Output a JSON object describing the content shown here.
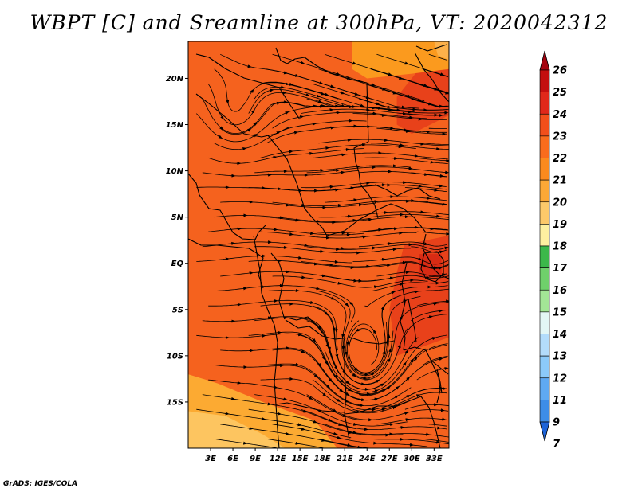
{
  "title": "WBPT [C] and Sreamline at 300hPa, VT: 2020042312",
  "credit": "GrADS: IGES/COLA",
  "map": {
    "lon_range": [
      0,
      35
    ],
    "lat_range": [
      -20,
      24
    ],
    "lat_ticks": [
      {
        "value": 20,
        "label": "20N"
      },
      {
        "value": 15,
        "label": "15N"
      },
      {
        "value": 10,
        "label": "10N"
      },
      {
        "value": 5,
        "label": "5N"
      },
      {
        "value": 0,
        "label": "EQ"
      },
      {
        "value": -5,
        "label": "5S"
      },
      {
        "value": -10,
        "label": "10S"
      },
      {
        "value": -15,
        "label": "15S"
      }
    ],
    "lon_ticks": [
      {
        "value": 3,
        "label": "3E"
      },
      {
        "value": 6,
        "label": "6E"
      },
      {
        "value": 9,
        "label": "9E"
      },
      {
        "value": 12,
        "label": "12E"
      },
      {
        "value": 15,
        "label": "15E"
      },
      {
        "value": 18,
        "label": "18E"
      },
      {
        "value": 21,
        "label": "21E"
      },
      {
        "value": 24,
        "label": "24E"
      },
      {
        "value": 27,
        "label": "27E"
      },
      {
        "value": 30,
        "label": "30E"
      },
      {
        "value": 33,
        "label": "33E"
      }
    ],
    "background_color": "#f5621e",
    "regions": [
      {
        "name": "northeast-warm",
        "color": "#e8411a",
        "points": [
          [
            28,
            18
          ],
          [
            31,
            21
          ],
          [
            35,
            21
          ],
          [
            35,
            16
          ],
          [
            30,
            14
          ],
          [
            28,
            15
          ]
        ]
      },
      {
        "name": "east-warm-coast",
        "color": "#e8411a",
        "points": [
          [
            29,
            2
          ],
          [
            35,
            3
          ],
          [
            35,
            -8
          ],
          [
            28,
            -10
          ],
          [
            27,
            -5
          ],
          [
            28,
            -1
          ]
        ]
      },
      {
        "name": "lake-victoria-warm",
        "color": "#d92b14",
        "points": [
          [
            31,
            1
          ],
          [
            34,
            1
          ],
          [
            34,
            -1.5
          ],
          [
            31,
            -1.5
          ]
        ]
      },
      {
        "name": "north-cool",
        "color": "#fb9a1e",
        "points": [
          [
            22,
            24
          ],
          [
            35,
            24
          ],
          [
            35,
            21
          ],
          [
            30,
            20.5
          ],
          [
            24,
            20
          ],
          [
            22,
            21
          ]
        ]
      },
      {
        "name": "northeast-pale",
        "color": "#fdb14a",
        "points": [
          [
            33,
            24
          ],
          [
            35,
            24
          ],
          [
            35,
            22
          ],
          [
            33.5,
            22.5
          ]
        ]
      },
      {
        "name": "southwest-cool",
        "color": "#fcaa32",
        "points": [
          [
            0,
            -12
          ],
          [
            4,
            -13
          ],
          [
            10,
            -15
          ],
          [
            17,
            -17
          ],
          [
            20,
            -20
          ],
          [
            0,
            -20
          ]
        ]
      },
      {
        "name": "southwest-pale",
        "color": "#fdc560",
        "points": [
          [
            0,
            -16
          ],
          [
            5,
            -16.5
          ],
          [
            10,
            -18.5
          ],
          [
            13,
            -20
          ],
          [
            0,
            -20
          ]
        ]
      }
    ],
    "vortex_centers": [
      {
        "name": "south-cyclone",
        "lon": 23.5,
        "lat": -11
      },
      {
        "name": "north-anticyclone",
        "lon": 6,
        "lat": 15.5
      },
      {
        "name": "lake-victoria-circulation",
        "lon": 33,
        "lat": 0
      }
    ]
  },
  "colorbar": {
    "labels": [
      "26",
      "25",
      "24",
      "23",
      "22",
      "21",
      "20",
      "19",
      "18",
      "17",
      "16",
      "15",
      "14",
      "13",
      "12",
      "11",
      "9",
      "7"
    ],
    "colors": [
      "#a5030f",
      "#c40f0f",
      "#e0281a",
      "#f24f1b",
      "#f96c1d",
      "#fb8a1e",
      "#fca836",
      "#fdc96a",
      "#fef0a0",
      "#3cb84a",
      "#6fd06b",
      "#a3e596",
      "#e3f6f5",
      "#b3dcfb",
      "#8ccaf9",
      "#5fa9f2",
      "#3d8de8",
      "#1e64d8"
    ]
  }
}
